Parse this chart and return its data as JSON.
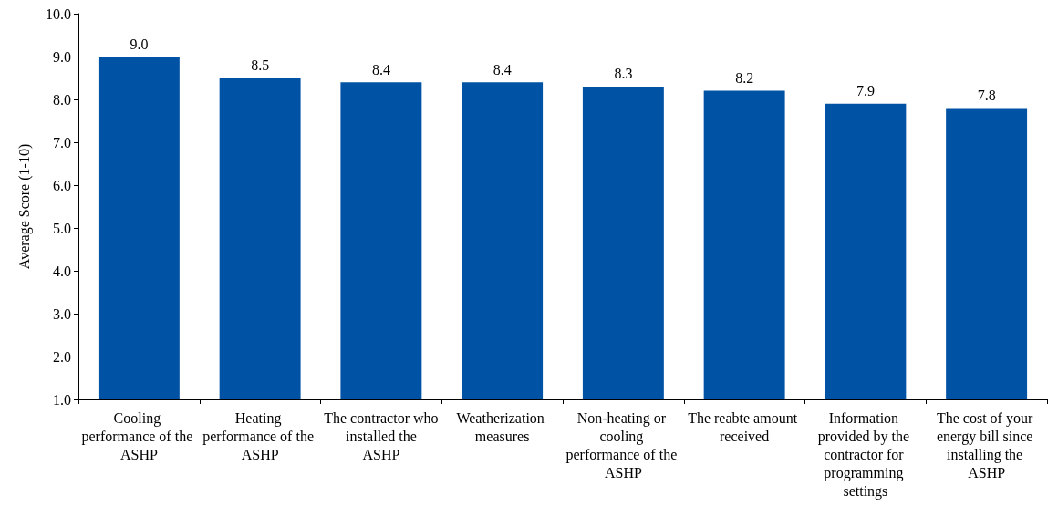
{
  "chart_data": {
    "type": "bar",
    "ylabel": "Average Score (1-10)",
    "categories": [
      "Cooling performance of the ASHP",
      "Heating performance of the ASHP",
      "The contractor who installed the ASHP",
      "Weatherization measures",
      "Non-heating or cooling performance of the ASHP",
      "The reabte amount received",
      "Information provided by the contractor for programming settings",
      "The cost of your energy bill since installing the ASHP"
    ],
    "values": [
      9.0,
      8.5,
      8.4,
      8.4,
      8.3,
      8.2,
      7.9,
      7.8
    ],
    "value_labels": [
      "9.0",
      "8.5",
      "8.4",
      "8.4",
      "8.3",
      "8.2",
      "7.9",
      "7.8"
    ],
    "color": "#0052a5",
    "ylim": [
      1,
      10
    ],
    "yticks": [
      {
        "value": 1,
        "label": "1.0"
      },
      {
        "value": 2,
        "label": "2.0"
      },
      {
        "value": 3,
        "label": "3.0"
      },
      {
        "value": 4,
        "label": "4.0"
      },
      {
        "value": 5,
        "label": "5.0"
      },
      {
        "value": 6,
        "label": "6.0"
      },
      {
        "value": 7,
        "label": "7.0"
      },
      {
        "value": 8,
        "label": "8.0"
      },
      {
        "value": 9,
        "label": "9.0"
      },
      {
        "value": 10,
        "label": "10.0"
      }
    ],
    "grid": false
  }
}
